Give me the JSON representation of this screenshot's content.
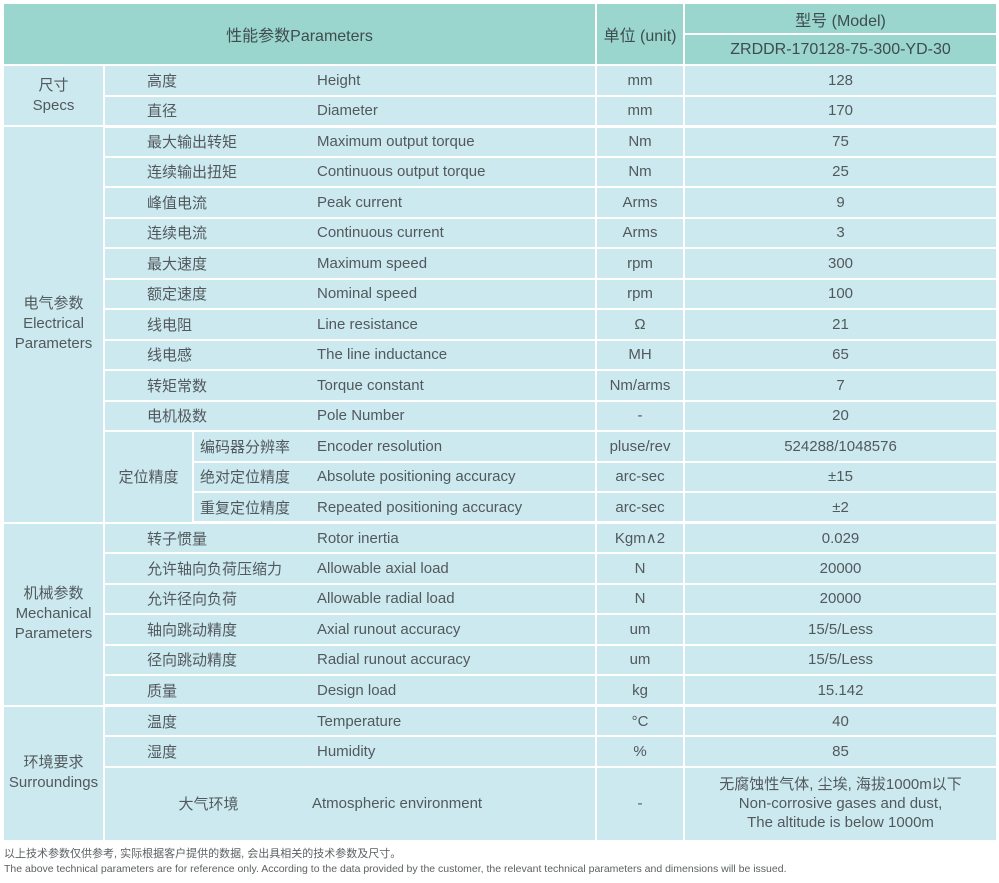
{
  "header": {
    "parameters": "性能参数Parameters",
    "unit": "单位 (unit)",
    "model": "型号 (Model)",
    "model_value": "ZRDDR-170128-75-300-YD-30"
  },
  "colors": {
    "header_bg": "#9ad5ce",
    "cell_bg": "#cde9f0",
    "border": "#ffffff",
    "text": "#51595c"
  },
  "sections": [
    {
      "label": "尺寸\nSpecs",
      "rows": [
        {
          "cn": "高度",
          "en": "Height",
          "unit": "mm",
          "value": "128"
        },
        {
          "cn": "直径",
          "en": "Diameter",
          "unit": "mm",
          "value": "170"
        }
      ]
    },
    {
      "label": "电气参数\nElectrical\nParameters",
      "rows": [
        {
          "cn": "最大输出转矩",
          "en": "Maximum output torque",
          "unit": "Nm",
          "value": "75"
        },
        {
          "cn": "连续输出扭矩",
          "en": "Continuous output torque",
          "unit": "Nm",
          "value": "25"
        },
        {
          "cn": "峰值电流",
          "en": "Peak current",
          "unit": "Arms",
          "value": "9"
        },
        {
          "cn": "连续电流",
          "en": "Continuous current",
          "unit": "Arms",
          "value": "3"
        },
        {
          "cn": "最大速度",
          "en": "Maximum speed",
          "unit": "rpm",
          "value": "300"
        },
        {
          "cn": "额定速度",
          "en": "Nominal speed",
          "unit": "rpm",
          "value": "100"
        },
        {
          "cn": "线电阻",
          "en": "Line resistance",
          "unit": "Ω",
          "value": "21"
        },
        {
          "cn": "线电感",
          "en": "The line inductance",
          "unit": "MH",
          "value": "65"
        },
        {
          "cn": "转矩常数",
          "en": "Torque constant",
          "unit": "Nm/arms",
          "value": "7"
        },
        {
          "cn": "电机极数",
          "en": "Pole Number",
          "unit": "-",
          "value": "20"
        }
      ],
      "subgroup_label": "定位精度",
      "sub_rows": [
        {
          "cn": "编码器分辨率",
          "en": "Encoder resolution",
          "unit": "pluse/rev",
          "value": "524288/1048576"
        },
        {
          "cn": "绝对定位精度",
          "en": "Absolute positioning accuracy",
          "unit": "arc-sec",
          "value": "±15"
        },
        {
          "cn": "重复定位精度",
          "en": "Repeated positioning accuracy",
          "unit": "arc-sec",
          "value": "±2"
        }
      ]
    },
    {
      "label": "机械参数\nMechanical\nParameters",
      "rows": [
        {
          "cn": "转子惯量",
          "en": "Rotor inertia",
          "unit": "Kgm∧2",
          "value": "0.029"
        },
        {
          "cn": "允许轴向负荷压缩力",
          "en": "Allowable axial load",
          "unit": "N",
          "value": "20000"
        },
        {
          "cn": "允许径向负荷",
          "en": "Allowable radial load",
          "unit": "N",
          "value": "20000"
        },
        {
          "cn": "轴向跳动精度",
          "en": "Axial runout accuracy",
          "unit": "um",
          "value": "15/5/Less"
        },
        {
          "cn": "径向跳动精度",
          "en": "Radial runout accuracy",
          "unit": "um",
          "value": "15/5/Less"
        },
        {
          "cn": "质量",
          "en": "Design load",
          "unit": "kg",
          "value": "15.142"
        }
      ]
    },
    {
      "label": "环境要求\nSurroundings",
      "rows": [
        {
          "cn": "温度",
          "en": "Temperature",
          "unit": "°C",
          "value": "40"
        },
        {
          "cn": "湿度",
          "en": "Humidity",
          "unit": "%",
          "value": "85"
        }
      ],
      "wide_row": {
        "cn": "大气环境",
        "en": "Atmospheric environment",
        "unit": "-",
        "value": "无腐蚀性气体, 尘埃, 海拔1000m以下\nNon-corrosive gases and dust,\nThe altitude is below 1000m"
      }
    }
  ],
  "notes": {
    "cn": "以上技术参数仅供参考, 实际根据客户提供的数据, 会出具相关的技术参数及尺寸。",
    "en": "The above technical parameters are for reference only. According to the data provided by the customer, the relevant technical parameters and dimensions will be issued."
  }
}
